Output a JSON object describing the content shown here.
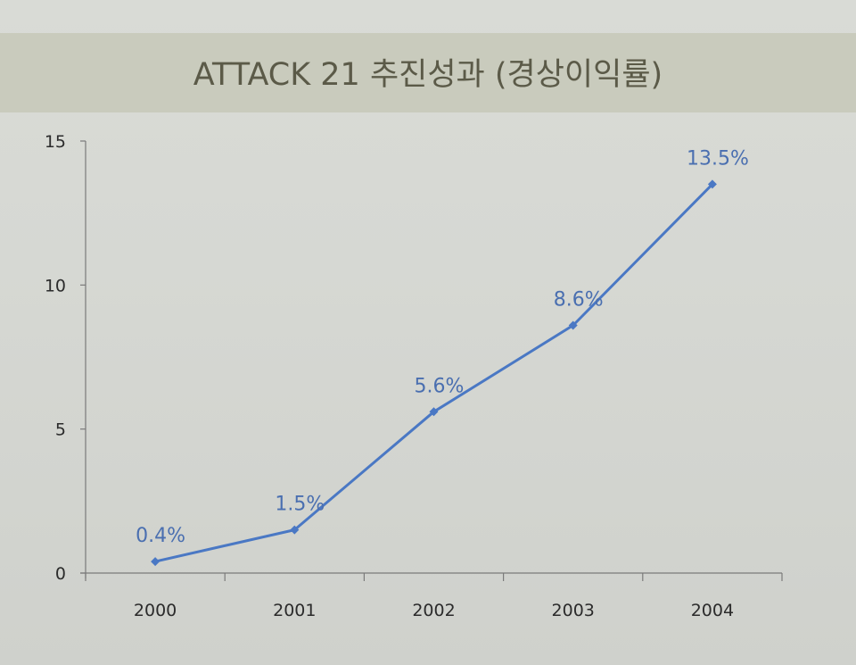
{
  "title": "ATTACK 21 추진성과 (경상이익률)",
  "colors": {
    "series": "#4a78c4",
    "axis": "#7a7a7a",
    "title_band": "#c9cbbd",
    "title_text": "#5b5a48",
    "label": "#4a6fb0"
  },
  "chart_data": {
    "type": "line",
    "title": "ATTACK 21 추진성과 (경상이익률)",
    "xlabel": "",
    "ylabel": "",
    "categories": [
      "2000",
      "2001",
      "2002",
      "2003",
      "2004"
    ],
    "series": [
      {
        "name": "경상이익률",
        "values": [
          0.4,
          1.5,
          5.6,
          8.6,
          13.5
        ],
        "labels": [
          "0.4%",
          "1.5%",
          "5.6%",
          "8.6%",
          "13.5%"
        ],
        "marker": "diamond"
      }
    ],
    "ylim": [
      0,
      15
    ],
    "yticks": [
      0,
      5,
      10,
      15
    ],
    "grid": false,
    "legend": "none"
  }
}
